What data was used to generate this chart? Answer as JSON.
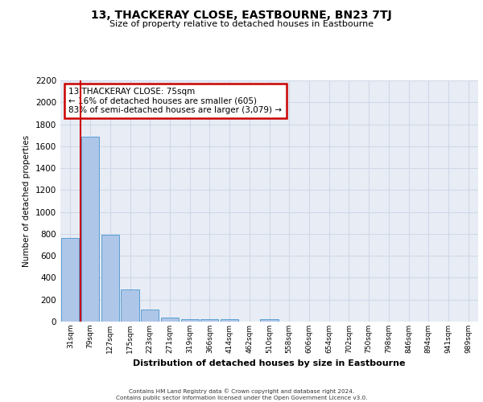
{
  "title": "13, THACKERAY CLOSE, EASTBOURNE, BN23 7TJ",
  "subtitle": "Size of property relative to detached houses in Eastbourne",
  "xlabel": "Distribution of detached houses by size in Eastbourne",
  "ylabel": "Number of detached properties",
  "categories": [
    "31sqm",
    "79sqm",
    "127sqm",
    "175sqm",
    "223sqm",
    "271sqm",
    "319sqm",
    "366sqm",
    "414sqm",
    "462sqm",
    "510sqm",
    "558sqm",
    "606sqm",
    "654sqm",
    "702sqm",
    "750sqm",
    "798sqm",
    "846sqm",
    "894sqm",
    "941sqm",
    "989sqm"
  ],
  "values": [
    760,
    1690,
    790,
    295,
    110,
    40,
    25,
    20,
    20,
    0,
    25,
    0,
    0,
    0,
    0,
    0,
    0,
    0,
    0,
    0,
    0
  ],
  "bar_color": "#aec6e8",
  "bar_edge_color": "#5a9fd4",
  "vline_color": "#cc0000",
  "annotation_box_text": "13 THACKERAY CLOSE: 75sqm\n← 16% of detached houses are smaller (605)\n83% of semi-detached houses are larger (3,079) →",
  "annotation_box_color": "#cc0000",
  "annotation_box_bg": "#ffffff",
  "ylim": [
    0,
    2200
  ],
  "yticks": [
    0,
    200,
    400,
    600,
    800,
    1000,
    1200,
    1400,
    1600,
    1800,
    2000,
    2200
  ],
  "grid_color": "#d0d8e8",
  "bg_color": "#e8edf5",
  "footer_line1": "Contains HM Land Registry data © Crown copyright and database right 2024.",
  "footer_line2": "Contains public sector information licensed under the Open Government Licence v3.0."
}
